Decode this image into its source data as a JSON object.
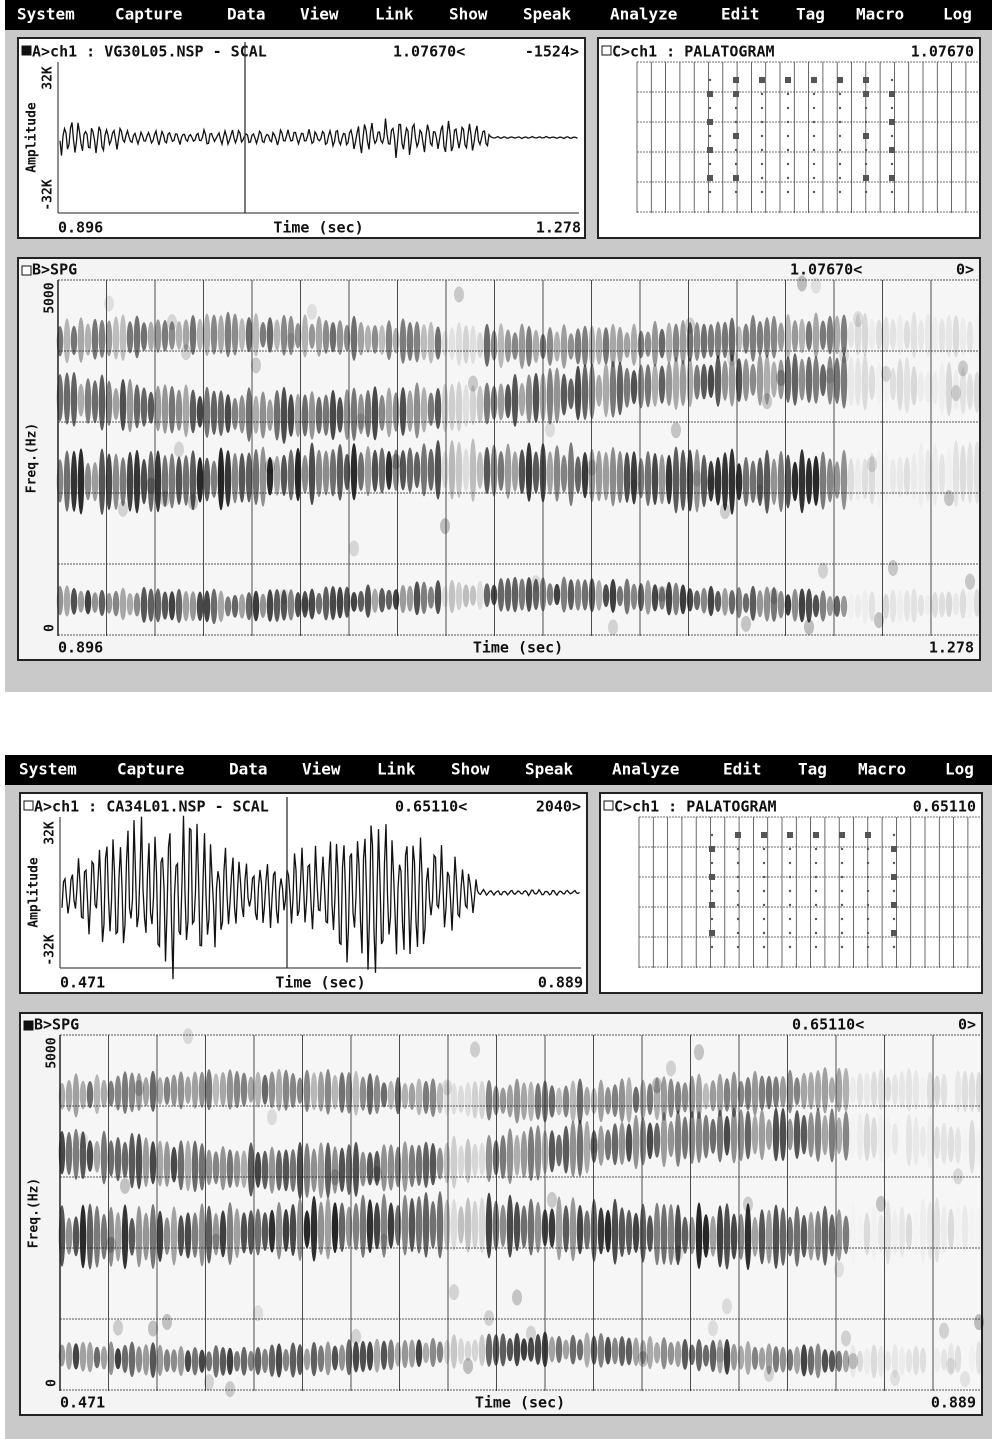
{
  "screens": [
    {
      "menu": [
        "System",
        "Capture",
        "Data",
        "View",
        "Link",
        "Show",
        "Speak",
        "Analyze",
        "Edit",
        "Tag",
        "Macro",
        "Log"
      ],
      "waveform": {
        "header": "A>ch1 : VG30L05.NSP - SCAL",
        "cursor": "1.07670<",
        "value": "-1524>",
        "y_label": "Amplitude",
        "y_top": "32K",
        "y_bottom": "-32K",
        "x_start": "0.896",
        "x_label": "Time (sec)",
        "x_end": "1.278"
      },
      "palatogram": {
        "header": "C>ch1 : PALATOGRAM",
        "value": "1.07670"
      },
      "spectrogram": {
        "header": "B>SPG",
        "cursor": "1.07670<",
        "value": "0>",
        "y_label": "Freq.(Hz)",
        "y_top": "5000",
        "y_bottom": "0",
        "x_start": "0.896",
        "x_label": "Time (sec)",
        "x_end": "1.278"
      }
    },
    {
      "menu": [
        "System",
        "Capture",
        "Data",
        "View",
        "Link",
        "Show",
        "Speak",
        "Analyze",
        "Edit",
        "Tag",
        "Macro",
        "Log"
      ],
      "waveform": {
        "header": "A>ch1 : CA34L01.NSP - SCAL",
        "cursor": "0.65110<",
        "value": "2040>",
        "y_label": "Amplitude",
        "y_top": "32K",
        "y_bottom": "-32K",
        "x_start": "0.471",
        "x_label": "Time (sec)",
        "x_end": "0.889"
      },
      "palatogram": {
        "header": "C>ch1 : PALATOGRAM",
        "value": "0.65110"
      },
      "spectrogram": {
        "header": "B>SPG",
        "cursor": "0.65110<",
        "value": "0>",
        "y_label": "Freq.(Hz)",
        "y_top": "5000",
        "y_bottom": "0",
        "x_start": "0.471",
        "x_label": "Time (sec)",
        "x_end": "0.889"
      }
    }
  ]
}
